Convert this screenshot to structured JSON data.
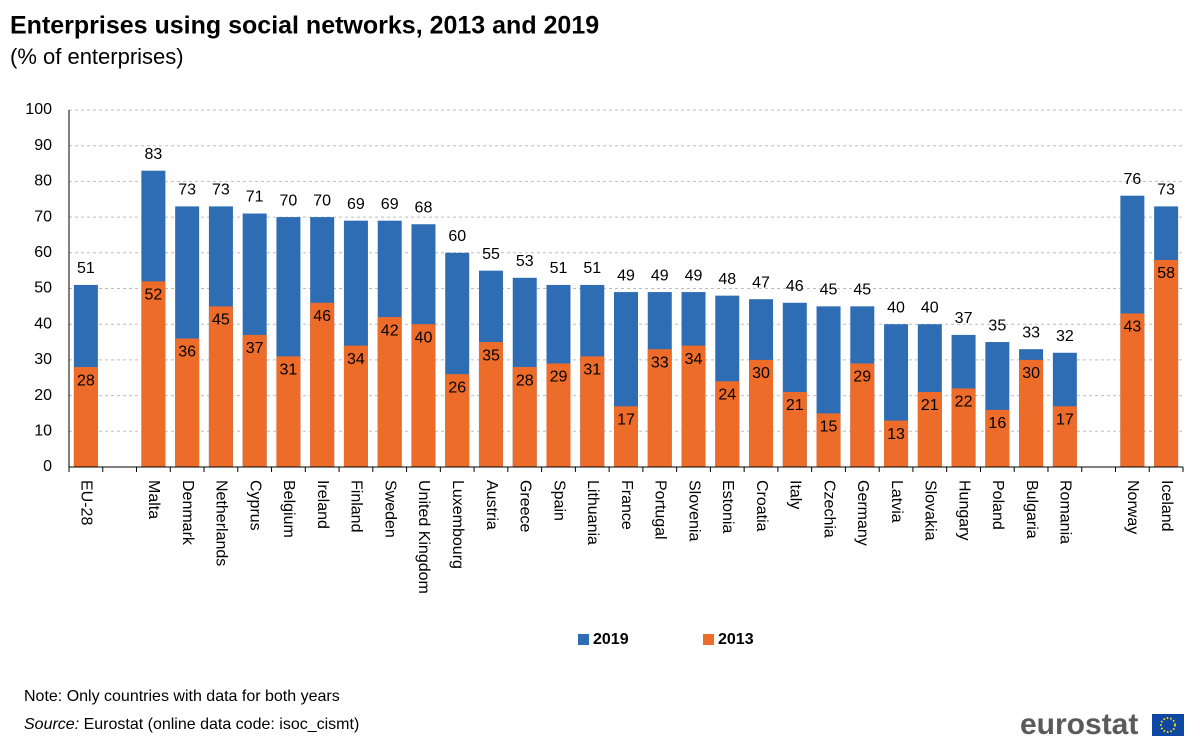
{
  "chart_data": {
    "type": "bar",
    "title": "Enterprises using social networks, 2013 and 2019",
    "subtitle": "(% of enterprises)",
    "categories": [
      "EU-28",
      null,
      "Malta",
      "Denmark",
      "Netherlands",
      "Cyprus",
      "Belgium",
      "Ireland",
      "Finland",
      "Sweden",
      "United Kingdom",
      "Luxembourg",
      "Austria",
      "Greece",
      "Spain",
      "Lithuania",
      "France",
      "Portugal",
      "Slovenia",
      "Estonia",
      "Croatia",
      "Italy",
      "Czechia",
      "Germany",
      "Latvia",
      "Slovakia",
      "Hungary",
      "Poland",
      "Bulgaria",
      "Romania",
      null,
      "Norway",
      "Iceland"
    ],
    "series": [
      {
        "name": "2019",
        "color": "#2e6db4",
        "values": [
          51,
          null,
          83,
          73,
          73,
          71,
          70,
          70,
          69,
          69,
          68,
          60,
          55,
          53,
          51,
          51,
          49,
          49,
          49,
          48,
          47,
          46,
          45,
          45,
          40,
          40,
          37,
          35,
          33,
          32,
          null,
          76,
          73
        ]
      },
      {
        "name": "2013",
        "color": "#ee6c2a",
        "values": [
          28,
          null,
          52,
          36,
          45,
          37,
          31,
          46,
          34,
          42,
          40,
          26,
          35,
          28,
          29,
          31,
          17,
          33,
          34,
          24,
          30,
          21,
          15,
          29,
          13,
          21,
          22,
          16,
          30,
          17,
          null,
          43,
          58
        ]
      }
    ],
    "ylim": [
      0,
      100
    ],
    "yticks": [
      0,
      10,
      20,
      30,
      40,
      50,
      60,
      70,
      80,
      90,
      100
    ],
    "grid": true,
    "legend": "bottom",
    "note": "Note: Only countries with data for  both years",
    "source_label": "Source:",
    "source": " Eurostat (online data code: isoc_cismt)",
    "logo": "eurostat"
  }
}
